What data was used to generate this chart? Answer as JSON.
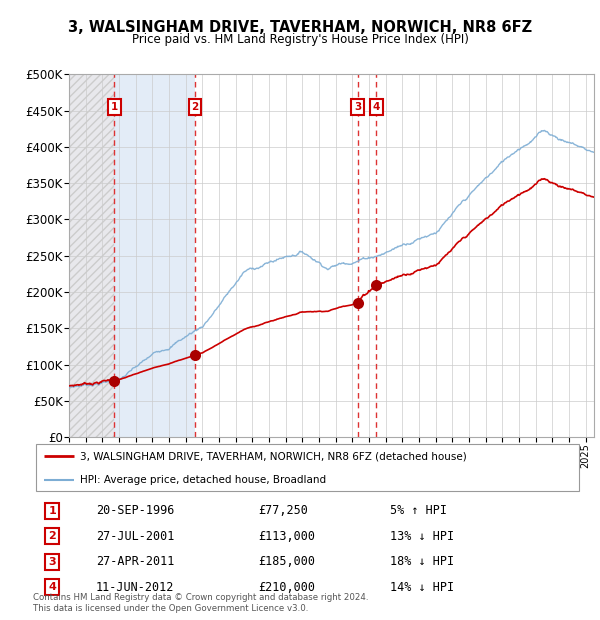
{
  "title": "3, WALSINGHAM DRIVE, TAVERHAM, NORWICH, NR8 6FZ",
  "subtitle": "Price paid vs. HM Land Registry's House Price Index (HPI)",
  "ylim": [
    0,
    500000
  ],
  "yticks": [
    0,
    50000,
    100000,
    150000,
    200000,
    250000,
    300000,
    350000,
    400000,
    450000,
    500000
  ],
  "xlim_start": 1994.0,
  "xlim_end": 2025.5,
  "sale_dates": [
    1996.72,
    2001.57,
    2011.32,
    2012.44
  ],
  "sale_prices": [
    77250,
    113000,
    185000,
    210000
  ],
  "sale_labels": [
    "1",
    "2",
    "3",
    "4"
  ],
  "sale_info": [
    {
      "label": "1",
      "date": "20-SEP-1996",
      "price": "£77,250",
      "pct": "5% ↑ HPI"
    },
    {
      "label": "2",
      "date": "27-JUL-2001",
      "price": "£113,000",
      "pct": "13% ↓ HPI"
    },
    {
      "label": "3",
      "date": "27-APR-2011",
      "price": "£185,000",
      "pct": "18% ↓ HPI"
    },
    {
      "label": "4",
      "date": "11-JUN-2012",
      "price": "£210,000",
      "pct": "14% ↓ HPI"
    }
  ],
  "hpi_color": "#7dadd4",
  "price_color": "#cc0000",
  "sale_marker_color": "#aa0000",
  "dashed_line_color": "#dd3333",
  "legend_line1": "3, WALSINGHAM DRIVE, TAVERHAM, NORWICH, NR8 6FZ (detached house)",
  "legend_line2": "HPI: Average price, detached house, Broadland",
  "footer": "Contains HM Land Registry data © Crown copyright and database right 2024.\nThis data is licensed under the Open Government Licence v3.0."
}
